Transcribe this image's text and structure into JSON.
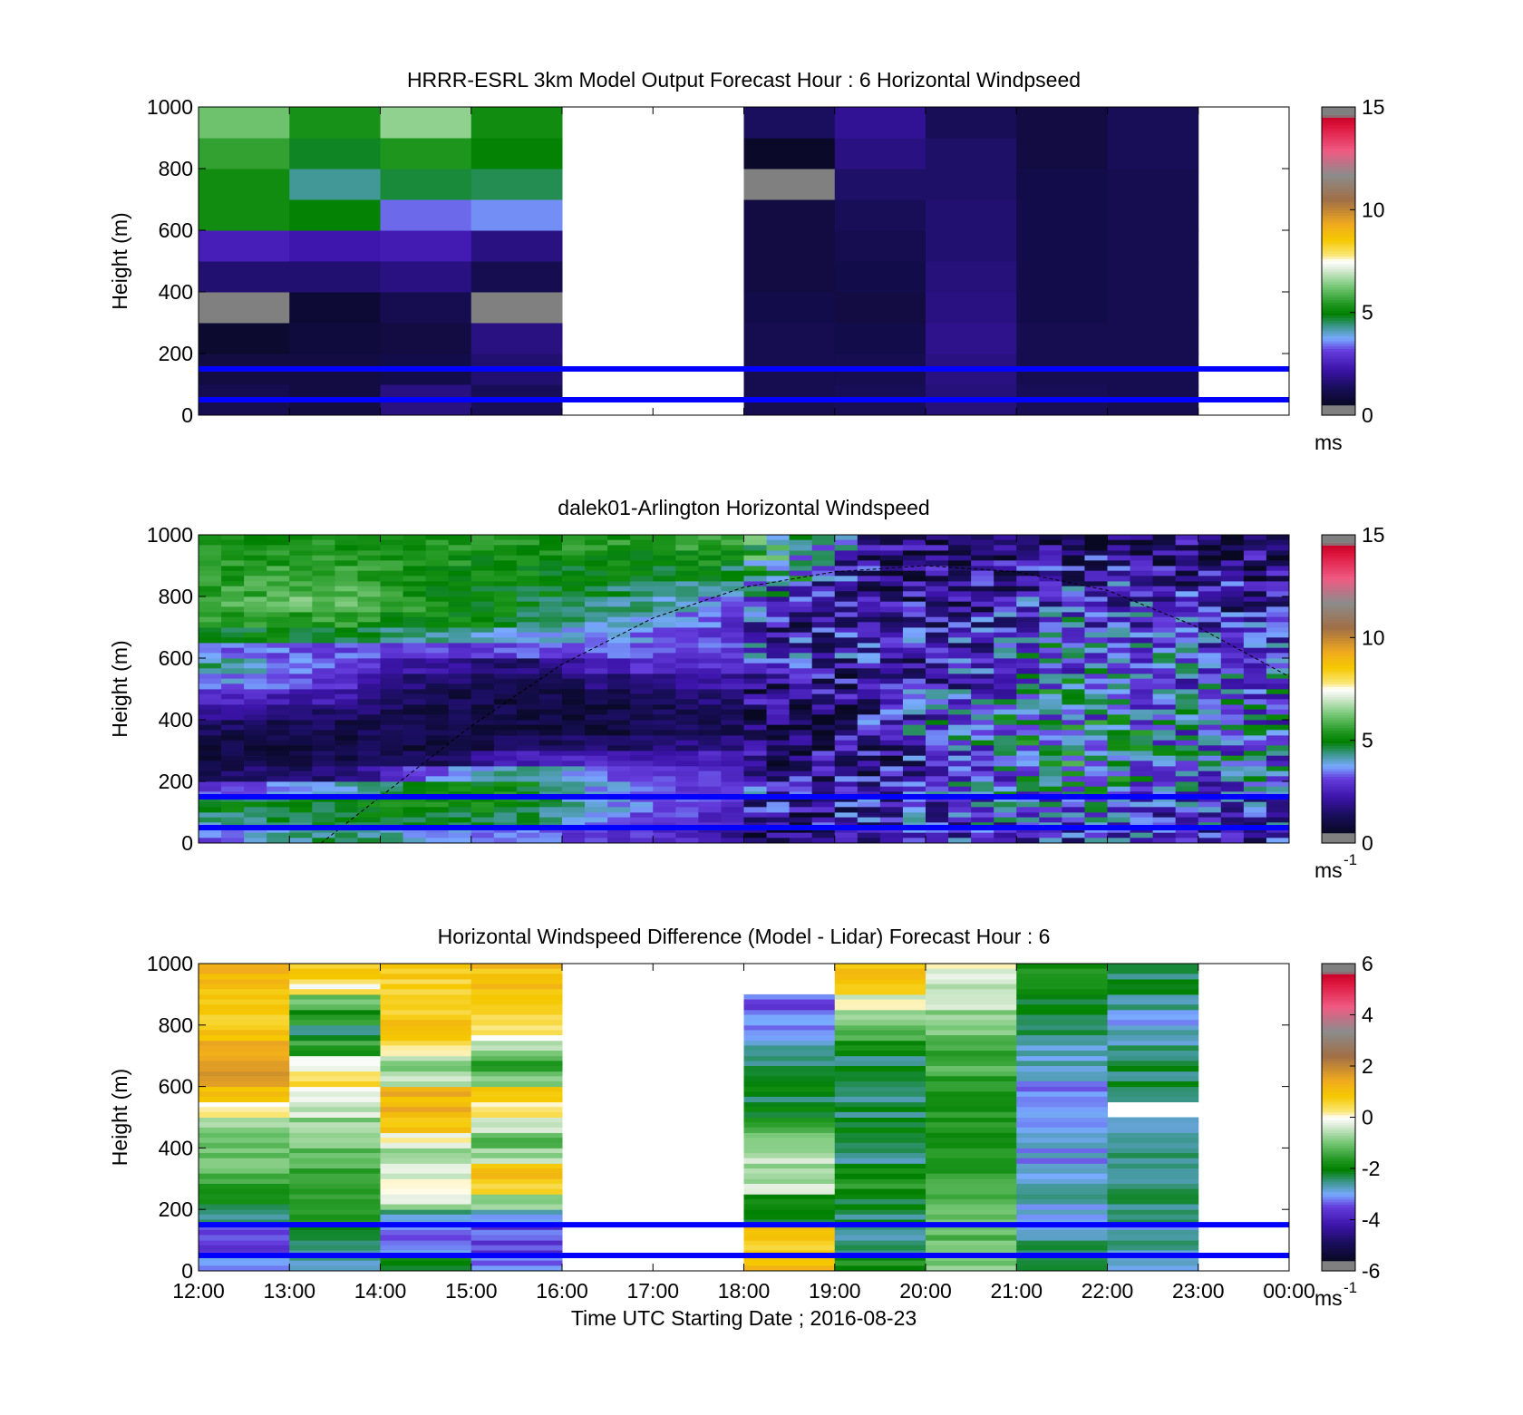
{
  "figure": {
    "xlabel": "Time UTC  Starting Date ; 2016-08-23",
    "x_tick_labels": [
      "12:00",
      "13:00",
      "14:00",
      "15:00",
      "16:00",
      "17:00",
      "18:00",
      "19:00",
      "20:00",
      "21:00",
      "22:00",
      "23:00",
      "00:00"
    ],
    "reference_lines_m": [
      50,
      150
    ],
    "reference_line_color": "#0000ff"
  },
  "chart_data": [
    {
      "type": "heatmap",
      "title": "HRRR-ESRL 3km Model Output   Forecast Hour : 6 Horizontal Windpseed",
      "ylabel": "Height (m)",
      "xlim": [
        "12:00",
        "00:00"
      ],
      "ylim": [
        0,
        1000
      ],
      "y_ticks": [
        0,
        200,
        400,
        600,
        800,
        1000
      ],
      "colorbar": {
        "ticks": [
          0,
          5,
          10,
          15
        ],
        "unit": "ms",
        "range": [
          0,
          15
        ]
      },
      "hours": [
        12,
        13,
        14,
        15,
        18,
        19,
        20,
        21,
        22
      ],
      "levels_m": [
        50,
        150,
        250,
        350,
        450,
        550,
        650,
        750,
        850,
        950
      ],
      "values": [
        [
          1.2,
          1.0,
          0.7,
          0.4,
          1.6,
          2.5,
          5.2,
          5.2,
          5.6,
          6.2
        ],
        [
          1.0,
          1.0,
          0.9,
          0.8,
          1.6,
          2.3,
          5.0,
          4.3,
          4.8,
          5.3
        ],
        [
          1.8,
          1.1,
          1.0,
          1.2,
          1.8,
          2.4,
          3.4,
          4.7,
          5.4,
          6.5
        ],
        [
          1.3,
          1.6,
          1.8,
          0.3,
          1.2,
          1.8,
          3.6,
          4.6,
          5.0,
          5.2
        ],
        [
          1.2,
          1.2,
          1.2,
          1.1,
          1.0,
          1.0,
          1.0,
          0.4,
          0.6,
          1.4
        ],
        [
          1.3,
          1.2,
          1.1,
          1.0,
          1.1,
          1.2,
          1.3,
          1.5,
          1.8,
          2.0
        ],
        [
          1.7,
          1.8,
          1.9,
          1.8,
          1.7,
          1.6,
          1.6,
          1.5,
          1.5,
          1.3
        ],
        [
          1.3,
          1.2,
          1.2,
          1.1,
          1.1,
          1.1,
          1.1,
          1.1,
          1.0,
          1.0
        ],
        [
          1.2,
          1.2,
          1.2,
          1.2,
          1.2,
          1.2,
          1.2,
          1.2,
          1.3,
          1.3
        ]
      ]
    },
    {
      "type": "heatmap",
      "title": "dalek01-Arlington  Horizontal Windspeed",
      "ylabel": "Height (m)",
      "xlim": [
        "12:00",
        "00:00"
      ],
      "ylim": [
        0,
        1000
      ],
      "y_ticks": [
        0,
        200,
        400,
        600,
        800,
        1000
      ],
      "colorbar": {
        "ticks": [
          0,
          5,
          10,
          15
        ],
        "unit": "ms",
        "unit_exponent": "-1",
        "range": [
          0,
          15
        ]
      },
      "time_start_h": 12,
      "time_end_h": 23.85,
      "interval_min": 15,
      "levels_m": [
        25,
        75,
        125,
        175,
        225,
        275,
        325,
        375,
        425,
        475,
        525,
        575,
        625,
        675,
        725,
        775,
        825,
        875,
        925,
        975
      ],
      "profile_key_hours": [
        12,
        13.5,
        14.5,
        15.5,
        16.5,
        17.5,
        18.5,
        19.5,
        20.5,
        21.5,
        22.5,
        23.75
      ],
      "profile_key_values": [
        [
          3.2,
          4.2,
          4.8,
          3.0,
          1.3,
          1.0,
          1.1,
          1.3,
          2.2,
          2.8,
          3.8,
          4.4,
          3.4,
          5.0,
          5.6,
          5.9,
          5.5,
          5.4,
          5.3,
          5.2
        ],
        [
          4.6,
          4.8,
          4.9,
          4.0,
          1.6,
          1.1,
          1.0,
          1.2,
          1.6,
          2.3,
          2.9,
          3.1,
          3.3,
          4.8,
          5.6,
          6.2,
          6.1,
          5.8,
          5.6,
          5.4
        ],
        [
          3.9,
          4.8,
          5.2,
          5.0,
          3.2,
          1.3,
          1.0,
          1.0,
          1.1,
          1.2,
          1.6,
          2.2,
          3.0,
          4.4,
          5.1,
          5.3,
          5.2,
          5.1,
          5.3,
          5.4
        ],
        [
          3.4,
          4.6,
          5.0,
          5.1,
          4.4,
          2.4,
          1.3,
          1.0,
          1.0,
          1.0,
          1.1,
          1.5,
          3.2,
          4.0,
          4.8,
          4.9,
          4.9,
          5.1,
          5.2,
          5.3
        ],
        [
          3.0,
          3.4,
          3.7,
          3.6,
          3.4,
          2.6,
          1.4,
          1.0,
          1.0,
          1.2,
          1.8,
          2.6,
          3.2,
          3.7,
          4.0,
          4.5,
          4.6,
          4.9,
          5.2,
          5.4
        ],
        [
          2.6,
          3.0,
          3.2,
          3.1,
          2.9,
          2.5,
          1.9,
          1.3,
          1.3,
          1.6,
          2.3,
          2.9,
          3.2,
          3.3,
          3.5,
          3.8,
          4.4,
          4.9,
          5.3,
          5.6
        ],
        [
          1.4,
          1.8,
          2.3,
          2.4,
          2.3,
          2.0,
          1.6,
          1.2,
          1.2,
          1.5,
          1.9,
          2.4,
          2.7,
          2.3,
          2.0,
          2.2,
          3.3,
          4.2,
          4.9,
          5.2
        ],
        [
          2.4,
          2.6,
          2.6,
          2.4,
          2.1,
          1.9,
          2.0,
          2.4,
          2.2,
          2.1,
          2.0,
          2.2,
          2.3,
          2.3,
          2.0,
          1.8,
          1.7,
          1.8,
          1.7,
          1.6
        ],
        [
          2.6,
          3.0,
          3.2,
          3.4,
          3.0,
          2.8,
          3.6,
          3.9,
          3.5,
          3.2,
          2.9,
          2.8,
          2.6,
          2.5,
          2.3,
          2.2,
          2.0,
          1.9,
          1.8,
          1.6
        ],
        [
          2.8,
          3.3,
          3.6,
          4.2,
          4.4,
          4.6,
          4.6,
          4.4,
          4.2,
          4.1,
          4.0,
          3.8,
          3.8,
          3.6,
          3.4,
          3.1,
          2.8,
          2.5,
          2.2,
          2.0
        ],
        [
          2.7,
          3.0,
          3.3,
          3.6,
          3.8,
          4.2,
          4.0,
          3.9,
          3.6,
          3.5,
          3.4,
          3.3,
          3.2,
          3.0,
          2.8,
          2.6,
          2.3,
          2.0,
          1.8,
          1.7
        ],
        [
          2.4,
          2.8,
          3.0,
          3.2,
          3.4,
          3.6,
          3.6,
          3.4,
          3.5,
          3.6,
          3.4,
          3.2,
          3.0,
          2.8,
          2.6,
          2.3,
          2.0,
          1.7,
          1.6,
          1.5
        ]
      ],
      "overlay_curve": {
        "style": "dashed",
        "color": "#000000",
        "points": [
          [
            13.35,
            0
          ],
          [
            14.0,
            150
          ],
          [
            15.0,
            380
          ],
          [
            16.0,
            580
          ],
          [
            17.0,
            730
          ],
          [
            18.0,
            830
          ],
          [
            19.0,
            880
          ],
          [
            20.0,
            900
          ],
          [
            21.0,
            880
          ],
          [
            22.0,
            820
          ],
          [
            23.0,
            700
          ],
          [
            24.0,
            540
          ]
        ]
      }
    },
    {
      "type": "heatmap",
      "title": "Horizontal Windspeed Difference (Model - Lidar) Forecast Hour : 6",
      "ylabel": "Height (m)",
      "xlim": [
        "12:00",
        "00:00"
      ],
      "ylim": [
        0,
        1000
      ],
      "y_ticks": [
        0,
        200,
        400,
        600,
        800,
        1000
      ],
      "colorbar": {
        "ticks": [
          -6,
          -4,
          -2,
          0,
          2,
          4,
          6
        ],
        "unit": "ms",
        "unit_exponent": "-1",
        "range": [
          -6,
          6
        ]
      },
      "hours": [
        12,
        13,
        14,
        15,
        18,
        19,
        20,
        21,
        22
      ],
      "levels_m": [
        25,
        75,
        125,
        175,
        225,
        275,
        325,
        375,
        425,
        475,
        525,
        575,
        625,
        675,
        725,
        775,
        825,
        875,
        925,
        975
      ],
      "values": [
        [
          -3.2,
          -3.5,
          -3.4,
          -2.5,
          -2.0,
          -1.5,
          -1.2,
          -1.0,
          -1.0,
          -0.6,
          0.2,
          1.0,
          1.5,
          1.3,
          1.2,
          1.0,
          0.9,
          0.9,
          1.0,
          1.2
        ],
        [
          -2.5,
          -2.6,
          -2.2,
          -1.8,
          -1.6,
          -1.5,
          -1.4,
          -1.2,
          -1.0,
          -0.8,
          -0.4,
          0.0,
          0.5,
          -0.2,
          -1.5,
          -2.3,
          -1.8,
          -1.0,
          0.2,
          0.9
        ],
        [
          -2.0,
          -3.0,
          -3.2,
          -2.6,
          -0.5,
          0.2,
          -0.3,
          -0.6,
          0.0,
          0.8,
          1.4,
          1.2,
          -0.5,
          -0.8,
          0.4,
          0.8,
          0.8,
          0.6,
          0.7,
          0.8
        ],
        [
          -3.4,
          -3.6,
          -3.5,
          -2.8,
          -1.0,
          0.8,
          1.0,
          -0.6,
          -1.4,
          -0.5,
          0.3,
          0.6,
          -1.0,
          -1.4,
          -0.8,
          0.2,
          0.6,
          0.9,
          1.0,
          1.0
        ],
        [
          1.0,
          0.8,
          0.7,
          -2.3,
          -2.0,
          -0.5,
          -0.6,
          -0.5,
          -0.8,
          -1.5,
          -2.0,
          -2.2,
          -2.3,
          -2.5,
          -2.8,
          -3.3,
          -3.0,
          -3.4,
          null,
          null
        ],
        [
          -1.8,
          -2.2,
          -2.5,
          -2.4,
          -2.2,
          -1.8,
          -2.0,
          -2.4,
          -2.3,
          -2.2,
          -2.3,
          -2.4,
          -2.4,
          -2.3,
          -2.0,
          -1.4,
          -0.6,
          -0.2,
          0.6,
          0.9
        ],
        [
          -0.8,
          -1.0,
          -1.2,
          -1.1,
          -1.2,
          -1.3,
          -1.5,
          -1.6,
          -1.6,
          -1.6,
          -1.6,
          -1.6,
          -1.5,
          -1.4,
          -1.3,
          -1.0,
          -0.8,
          -0.5,
          -0.3,
          -0.2
        ],
        [
          -2.4,
          -2.5,
          -2.6,
          -2.8,
          -2.8,
          -2.9,
          -3.0,
          -3.0,
          -3.0,
          -3.1,
          -3.1,
          -3.1,
          -3.0,
          -2.8,
          -2.6,
          -2.3,
          -2.2,
          -2.1,
          -2.0,
          -1.8
        ],
        [
          -2.6,
          -2.7,
          -2.8,
          -2.6,
          -2.4,
          -2.5,
          -2.6,
          -2.6,
          -2.4,
          -2.5,
          null,
          -2.5,
          -2.4,
          -2.3,
          -2.6,
          -2.7,
          -2.9,
          -2.6,
          -2.4,
          -2.3
        ]
      ]
    }
  ]
}
